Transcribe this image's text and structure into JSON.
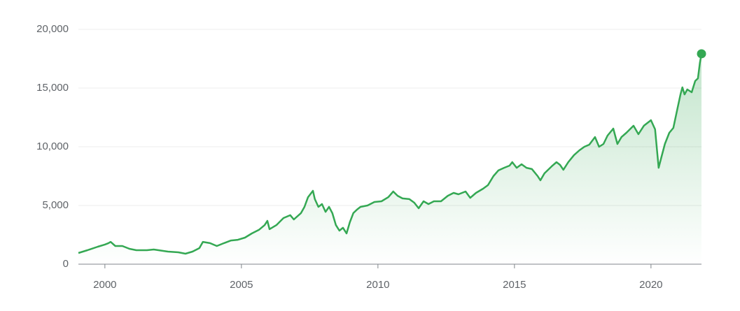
{
  "chart_data": {
    "type": "line",
    "x": [
      1999.03,
      1999.36,
      1999.74,
      2000,
      2000.13,
      2000.21,
      2000.38,
      2000.64,
      2000.9,
      2001.15,
      2001.54,
      2001.79,
      2002.31,
      2002.69,
      2002.95,
      2003.21,
      2003.46,
      2003.59,
      2003.85,
      2004.1,
      2004.36,
      2004.62,
      2004.87,
      2005.13,
      2005.38,
      2005.64,
      2005.85,
      2005.95,
      2006.03,
      2006.28,
      2006.54,
      2006.79,
      2006.92,
      2007.18,
      2007.31,
      2007.44,
      2007.62,
      2007.69,
      2007.82,
      2007.95,
      2008.08,
      2008.21,
      2008.33,
      2008.46,
      2008.59,
      2008.72,
      2008.85,
      2008.97,
      2009.1,
      2009.23,
      2009.36,
      2009.62,
      2009.87,
      2010.13,
      2010.38,
      2010.56,
      2010.72,
      2010.9,
      2011.15,
      2011.33,
      2011.49,
      2011.67,
      2011.85,
      2012.05,
      2012.31,
      2012.56,
      2012.77,
      2012.95,
      2013.21,
      2013.38,
      2013.59,
      2013.85,
      2014.03,
      2014.23,
      2014.41,
      2014.62,
      2014.82,
      2014.92,
      2015.08,
      2015.26,
      2015.44,
      2015.64,
      2015.85,
      2015.95,
      2016.1,
      2016.36,
      2016.54,
      2016.67,
      2016.79,
      2016.97,
      2017.18,
      2017.38,
      2017.56,
      2017.74,
      2017.95,
      2018.1,
      2018.26,
      2018.41,
      2018.62,
      2018.77,
      2018.92,
      2019.1,
      2019.36,
      2019.54,
      2019.74,
      2020,
      2020.15,
      2020.28,
      2020.38,
      2020.51,
      2020.67,
      2020.82,
      2020.97,
      2021.08,
      2021.15,
      2021.23,
      2021.33,
      2021.49,
      2021.62,
      2021.72,
      2021.79,
      2021.85
    ],
    "series": [
      {
        "color": "#34a853",
        "values": [
          950,
          1190,
          1490,
          1670,
          1790,
          1900,
          1550,
          1550,
          1310,
          1190,
          1190,
          1250,
          1070,
          1010,
          890,
          1070,
          1370,
          1900,
          1790,
          1550,
          1790,
          2020,
          2080,
          2260,
          2620,
          2920,
          3330,
          3690,
          2980,
          3330,
          3930,
          4170,
          3810,
          4350,
          4880,
          5710,
          6250,
          5540,
          4880,
          5120,
          4460,
          4880,
          4350,
          3330,
          2860,
          3100,
          2620,
          3570,
          4350,
          4640,
          4880,
          5000,
          5300,
          5360,
          5710,
          6190,
          5830,
          5600,
          5540,
          5240,
          4760,
          5360,
          5120,
          5360,
          5360,
          5830,
          6070,
          5950,
          6190,
          5650,
          6070,
          6430,
          6730,
          7500,
          7980,
          8210,
          8390,
          8690,
          8210,
          8510,
          8210,
          8100,
          7500,
          7140,
          7740,
          8330,
          8690,
          8450,
          8040,
          8690,
          9290,
          9700,
          10000,
          10180,
          10830,
          10000,
          10240,
          10950,
          11550,
          10240,
          10830,
          11190,
          11790,
          11070,
          11790,
          12260,
          11490,
          8210,
          9110,
          10240,
          11190,
          11610,
          13270,
          14460,
          15060,
          14460,
          14880,
          14640,
          15600,
          15830,
          17140,
          17920
        ]
      }
    ],
    "xlim": [
      1999.03,
      2021.85
    ],
    "xticks": [
      2000,
      2005,
      2010,
      2015,
      2020
    ],
    "ylim": [
      0,
      20000
    ],
    "yticks": [
      0,
      {
        "value": 5000,
        "label": "5,000"
      },
      {
        "value": 10000,
        "label": "10,000"
      },
      {
        "value": 15000,
        "label": "15,000"
      },
      {
        "value": 20000,
        "label": "20,000"
      }
    ],
    "grid": true
  }
}
